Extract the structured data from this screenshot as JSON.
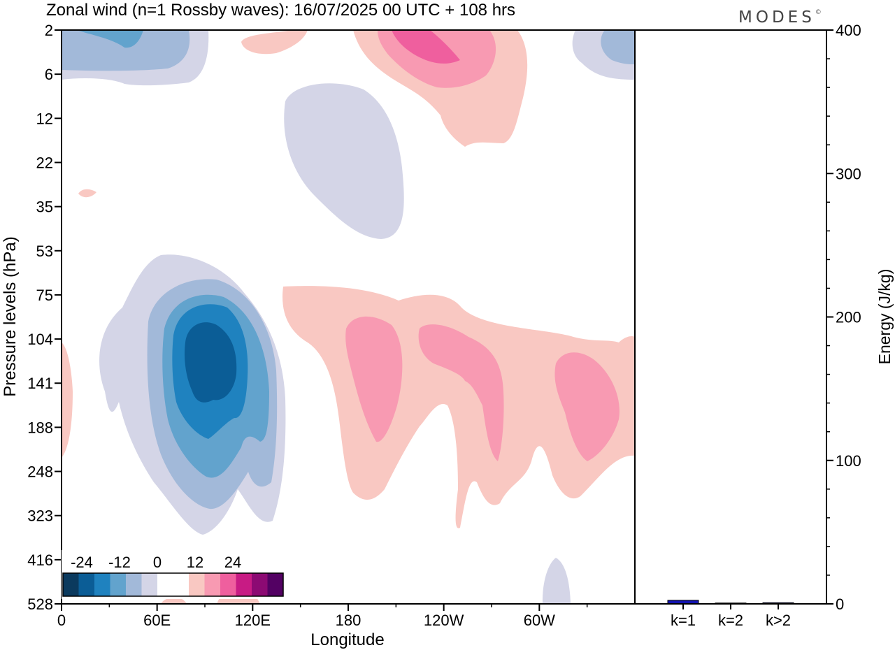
{
  "title": "Zonal wind (n=1 Rossby waves):  16/07/2025  00 UTC  + 108 hrs",
  "brand": "MODES",
  "brand_mark": "©",
  "colors": {
    "neg": [
      "#0b3a5e",
      "#0b5d96",
      "#1f82bf",
      "#62a3cd",
      "#a2b9d9",
      "#d4d5e7"
    ],
    "zero": "#ffffff",
    "pos": [
      "#f9c8c2",
      "#f89ab2",
      "#ef5f9e",
      "#c81b84",
      "#8c0a73",
      "#530163"
    ],
    "bar": "#1212b0"
  },
  "chart_data": [
    {
      "type": "heatmap",
      "title": "Zonal wind (n=1 Rossby waves):  16/07/2025  00 UTC  + 108 hrs",
      "xlabel": "Longitude",
      "ylabel": "Pressure levels (hPa)",
      "xlim": [
        0,
        360
      ],
      "x_ticks": [
        "0",
        "60E",
        "120E",
        "180",
        "120W",
        "60W"
      ],
      "y_ticks": [
        "2",
        "6",
        "12",
        "22",
        "35",
        "53",
        "75",
        "104",
        "141",
        "188",
        "248",
        "323",
        "416",
        "528"
      ],
      "colorbar_labels": [
        "-24",
        "-12",
        "0",
        "12",
        "24"
      ],
      "contour_levels": [
        -30,
        -25,
        -20,
        -15,
        -10,
        -5,
        0,
        5,
        10,
        15,
        20,
        25,
        30
      ],
      "features": [
        {
          "sign": "negative",
          "min_value": -20,
          "lon_center": 92,
          "pressure_center": 125
        },
        {
          "sign": "negative",
          "min_value": -10,
          "lon_center": 30,
          "pressure_center": 3
        },
        {
          "sign": "negative",
          "min_value": -5,
          "lon_center": 190,
          "pressure_center": 20
        },
        {
          "sign": "positive",
          "max_value": 15,
          "lon_center": 235,
          "pressure_center": 3
        },
        {
          "sign": "positive",
          "max_value": 10,
          "lon_center": 195,
          "pressure_center": 125
        },
        {
          "sign": "positive",
          "max_value": 10,
          "lon_center": 245,
          "pressure_center": 120
        },
        {
          "sign": "positive",
          "max_value": 10,
          "lon_center": 325,
          "pressure_center": 160
        }
      ]
    },
    {
      "type": "bar",
      "ylabel": "Energy (J/kg)",
      "ylim": [
        0,
        400
      ],
      "y_ticks": [
        "0",
        "100",
        "200",
        "300",
        "400"
      ],
      "categories": [
        "k=1",
        "k=2",
        "k>2"
      ],
      "values": [
        2.5,
        0.6,
        0.8
      ]
    }
  ]
}
